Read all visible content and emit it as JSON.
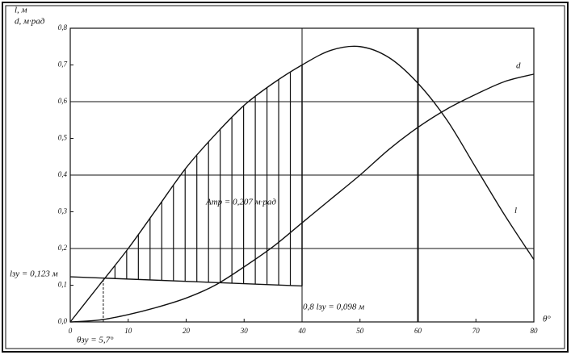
{
  "chart_data": {
    "type": "line",
    "y_axis_label_1": "l, м",
    "y_axis_label_2": "d, м·рад",
    "x_axis_label": "θ°",
    "xlim": [
      0,
      80
    ],
    "xticks": [
      0,
      10,
      20,
      30,
      40,
      50,
      60,
      70,
      80
    ],
    "ylim": [
      0,
      0.8
    ],
    "yticks": [
      {
        "value": 0,
        "label": "0,0"
      },
      {
        "value": 0.1,
        "label": "0,1"
      },
      {
        "value": 0.2,
        "label": "0,2"
      },
      {
        "value": 0.3,
        "label": "0,3"
      },
      {
        "value": 0.4,
        "label": "0,4"
      },
      {
        "value": 0.5,
        "label": "0,5"
      },
      {
        "value": 0.6,
        "label": "0,6"
      },
      {
        "value": 0.7,
        "label": "0,7"
      },
      {
        "value": 0.8,
        "label": "0,8"
      }
    ],
    "x": [
      0,
      5,
      10,
      15,
      20,
      25,
      30,
      35,
      40,
      45,
      50,
      55,
      60,
      65,
      70,
      75,
      80
    ],
    "series": [
      {
        "name": "l",
        "color": "#111111",
        "values": [
          0,
          0.1,
          0.2,
          0.31,
          0.42,
          0.51,
          0.59,
          0.65,
          0.7,
          0.74,
          0.75,
          0.72,
          0.65,
          0.55,
          0.42,
          0.29,
          0.17
        ]
      },
      {
        "name": "d",
        "color": "#111111",
        "values": [
          0,
          0.005,
          0.02,
          0.04,
          0.065,
          0.1,
          0.15,
          0.205,
          0.27,
          0.335,
          0.4,
          0.47,
          0.53,
          0.58,
          0.62,
          0.655,
          0.675
        ]
      }
    ],
    "heeling_arm": {
      "x": [
        0,
        40
      ],
      "values": [
        0.123,
        0.098
      ]
    },
    "theta_zu": 5.7,
    "annotations": {
      "area": "Aтр = 0,207 м·рад",
      "l_zu": "lзу = 0,123 м",
      "l_08": "0,8 lзу = 0,098 м",
      "theta": "θзу = 5,7°"
    }
  }
}
